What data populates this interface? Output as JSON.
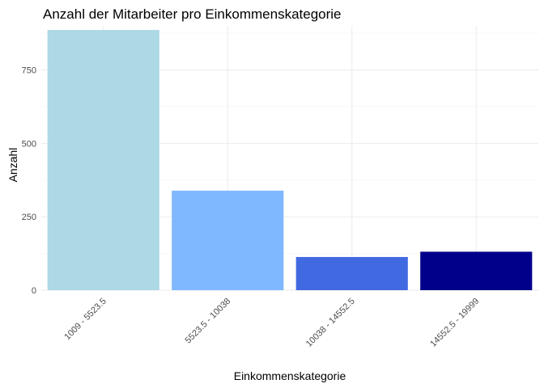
{
  "chart_data": {
    "type": "bar",
    "title": "Anzahl der Mitarbeiter pro Einkommenskategorie",
    "xlabel": "Einkommenskategorie",
    "ylabel": "Anzahl",
    "categories": [
      "1009 - 5523.5",
      "5523.5 - 10038",
      "10038 - 14552.5",
      "14552.5 - 19999"
    ],
    "values": [
      886,
      339,
      113,
      131
    ],
    "colors": [
      "#add8e6",
      "#80b8ff",
      "#4169e1",
      "#00008b"
    ],
    "ylim": [
      0,
      900
    ],
    "yticks": [
      0,
      250,
      500,
      750
    ],
    "grid": true,
    "legend": "none"
  }
}
